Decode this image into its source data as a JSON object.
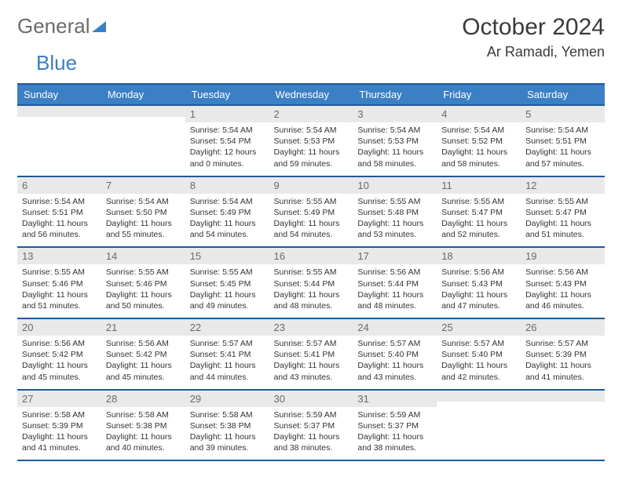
{
  "logo": {
    "word1": "General",
    "word2": "Blue"
  },
  "title": "October 2024",
  "location": "Ar Ramadi, Yemen",
  "colors": {
    "header_bg": "#3b7fc4",
    "header_border": "#1f5a99",
    "daynum_bg": "#e9e9e9",
    "text": "#333333"
  },
  "day_names": [
    "Sunday",
    "Monday",
    "Tuesday",
    "Wednesday",
    "Thursday",
    "Friday",
    "Saturday"
  ],
  "weeks": [
    [
      {
        "num": "",
        "sunrise": "",
        "sunset": "",
        "daylight": ""
      },
      {
        "num": "",
        "sunrise": "",
        "sunset": "",
        "daylight": ""
      },
      {
        "num": "1",
        "sunrise": "Sunrise: 5:54 AM",
        "sunset": "Sunset: 5:54 PM",
        "daylight": "Daylight: 12 hours and 0 minutes."
      },
      {
        "num": "2",
        "sunrise": "Sunrise: 5:54 AM",
        "sunset": "Sunset: 5:53 PM",
        "daylight": "Daylight: 11 hours and 59 minutes."
      },
      {
        "num": "3",
        "sunrise": "Sunrise: 5:54 AM",
        "sunset": "Sunset: 5:53 PM",
        "daylight": "Daylight: 11 hours and 58 minutes."
      },
      {
        "num": "4",
        "sunrise": "Sunrise: 5:54 AM",
        "sunset": "Sunset: 5:52 PM",
        "daylight": "Daylight: 11 hours and 58 minutes."
      },
      {
        "num": "5",
        "sunrise": "Sunrise: 5:54 AM",
        "sunset": "Sunset: 5:51 PM",
        "daylight": "Daylight: 11 hours and 57 minutes."
      }
    ],
    [
      {
        "num": "6",
        "sunrise": "Sunrise: 5:54 AM",
        "sunset": "Sunset: 5:51 PM",
        "daylight": "Daylight: 11 hours and 56 minutes."
      },
      {
        "num": "7",
        "sunrise": "Sunrise: 5:54 AM",
        "sunset": "Sunset: 5:50 PM",
        "daylight": "Daylight: 11 hours and 55 minutes."
      },
      {
        "num": "8",
        "sunrise": "Sunrise: 5:54 AM",
        "sunset": "Sunset: 5:49 PM",
        "daylight": "Daylight: 11 hours and 54 minutes."
      },
      {
        "num": "9",
        "sunrise": "Sunrise: 5:55 AM",
        "sunset": "Sunset: 5:49 PM",
        "daylight": "Daylight: 11 hours and 54 minutes."
      },
      {
        "num": "10",
        "sunrise": "Sunrise: 5:55 AM",
        "sunset": "Sunset: 5:48 PM",
        "daylight": "Daylight: 11 hours and 53 minutes."
      },
      {
        "num": "11",
        "sunrise": "Sunrise: 5:55 AM",
        "sunset": "Sunset: 5:47 PM",
        "daylight": "Daylight: 11 hours and 52 minutes."
      },
      {
        "num": "12",
        "sunrise": "Sunrise: 5:55 AM",
        "sunset": "Sunset: 5:47 PM",
        "daylight": "Daylight: 11 hours and 51 minutes."
      }
    ],
    [
      {
        "num": "13",
        "sunrise": "Sunrise: 5:55 AM",
        "sunset": "Sunset: 5:46 PM",
        "daylight": "Daylight: 11 hours and 51 minutes."
      },
      {
        "num": "14",
        "sunrise": "Sunrise: 5:55 AM",
        "sunset": "Sunset: 5:46 PM",
        "daylight": "Daylight: 11 hours and 50 minutes."
      },
      {
        "num": "15",
        "sunrise": "Sunrise: 5:55 AM",
        "sunset": "Sunset: 5:45 PM",
        "daylight": "Daylight: 11 hours and 49 minutes."
      },
      {
        "num": "16",
        "sunrise": "Sunrise: 5:55 AM",
        "sunset": "Sunset: 5:44 PM",
        "daylight": "Daylight: 11 hours and 48 minutes."
      },
      {
        "num": "17",
        "sunrise": "Sunrise: 5:56 AM",
        "sunset": "Sunset: 5:44 PM",
        "daylight": "Daylight: 11 hours and 48 minutes."
      },
      {
        "num": "18",
        "sunrise": "Sunrise: 5:56 AM",
        "sunset": "Sunset: 5:43 PM",
        "daylight": "Daylight: 11 hours and 47 minutes."
      },
      {
        "num": "19",
        "sunrise": "Sunrise: 5:56 AM",
        "sunset": "Sunset: 5:43 PM",
        "daylight": "Daylight: 11 hours and 46 minutes."
      }
    ],
    [
      {
        "num": "20",
        "sunrise": "Sunrise: 5:56 AM",
        "sunset": "Sunset: 5:42 PM",
        "daylight": "Daylight: 11 hours and 45 minutes."
      },
      {
        "num": "21",
        "sunrise": "Sunrise: 5:56 AM",
        "sunset": "Sunset: 5:42 PM",
        "daylight": "Daylight: 11 hours and 45 minutes."
      },
      {
        "num": "22",
        "sunrise": "Sunrise: 5:57 AM",
        "sunset": "Sunset: 5:41 PM",
        "daylight": "Daylight: 11 hours and 44 minutes."
      },
      {
        "num": "23",
        "sunrise": "Sunrise: 5:57 AM",
        "sunset": "Sunset: 5:41 PM",
        "daylight": "Daylight: 11 hours and 43 minutes."
      },
      {
        "num": "24",
        "sunrise": "Sunrise: 5:57 AM",
        "sunset": "Sunset: 5:40 PM",
        "daylight": "Daylight: 11 hours and 43 minutes."
      },
      {
        "num": "25",
        "sunrise": "Sunrise: 5:57 AM",
        "sunset": "Sunset: 5:40 PM",
        "daylight": "Daylight: 11 hours and 42 minutes."
      },
      {
        "num": "26",
        "sunrise": "Sunrise: 5:57 AM",
        "sunset": "Sunset: 5:39 PM",
        "daylight": "Daylight: 11 hours and 41 minutes."
      }
    ],
    [
      {
        "num": "27",
        "sunrise": "Sunrise: 5:58 AM",
        "sunset": "Sunset: 5:39 PM",
        "daylight": "Daylight: 11 hours and 41 minutes."
      },
      {
        "num": "28",
        "sunrise": "Sunrise: 5:58 AM",
        "sunset": "Sunset: 5:38 PM",
        "daylight": "Daylight: 11 hours and 40 minutes."
      },
      {
        "num": "29",
        "sunrise": "Sunrise: 5:58 AM",
        "sunset": "Sunset: 5:38 PM",
        "daylight": "Daylight: 11 hours and 39 minutes."
      },
      {
        "num": "30",
        "sunrise": "Sunrise: 5:59 AM",
        "sunset": "Sunset: 5:37 PM",
        "daylight": "Daylight: 11 hours and 38 minutes."
      },
      {
        "num": "31",
        "sunrise": "Sunrise: 5:59 AM",
        "sunset": "Sunset: 5:37 PM",
        "daylight": "Daylight: 11 hours and 38 minutes."
      },
      {
        "num": "",
        "sunrise": "",
        "sunset": "",
        "daylight": ""
      },
      {
        "num": "",
        "sunrise": "",
        "sunset": "",
        "daylight": ""
      }
    ]
  ]
}
